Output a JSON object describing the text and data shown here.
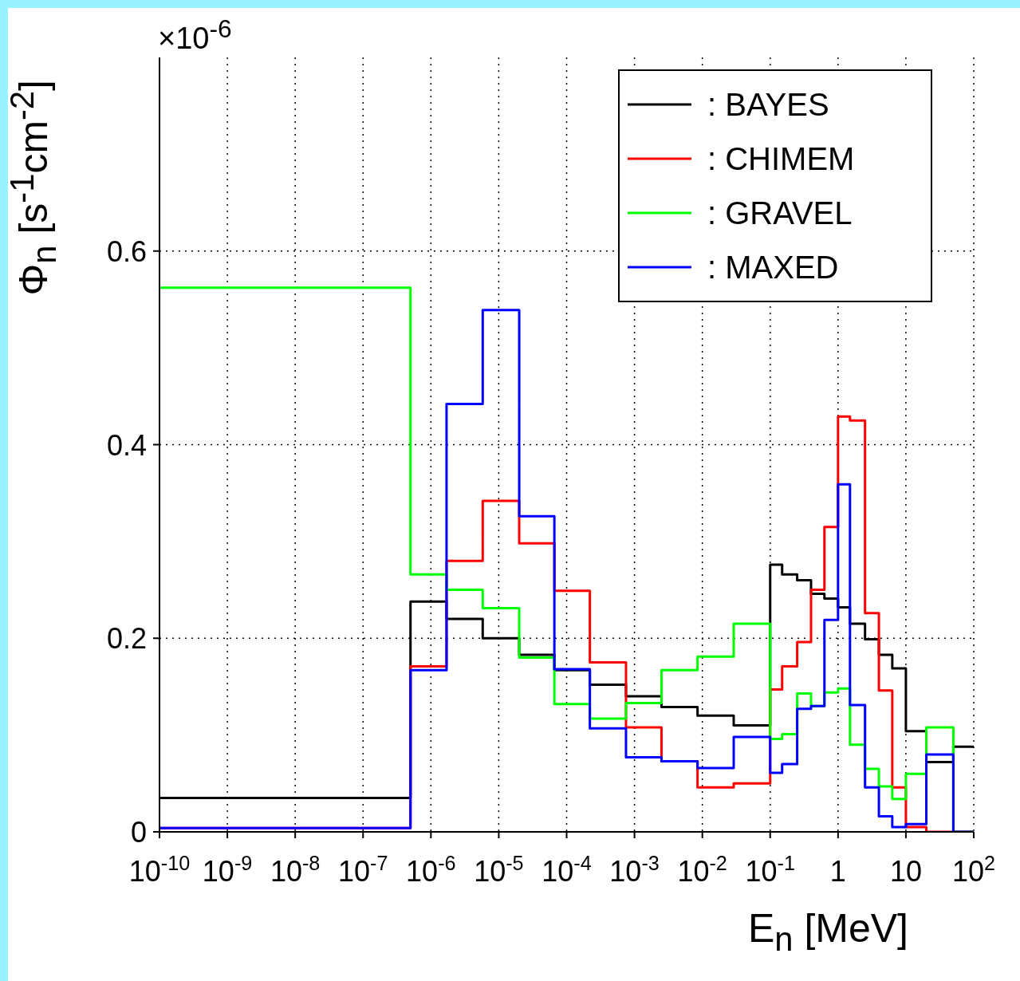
{
  "chart_data": {
    "type": "histogram",
    "bins": [
      1e-10,
      5e-07,
      1.7e-06,
      5.8e-06,
      2e-05,
      6.6e-05,
      0.00022,
      0.00075,
      0.0025,
      0.0085,
      0.029,
      0.1,
      0.15,
      0.25,
      0.4,
      0.63,
      1,
      1.5,
      2.5,
      4,
      6.3,
      10,
      20,
      50,
      100
    ],
    "series": [
      {
        "name": ": BAYES",
        "color": "#000000",
        "values": [
          0.035,
          0.238,
          0.22,
          0.2,
          0.183,
          0.167,
          0.152,
          0.14,
          0.129,
          0.12,
          0.11,
          0.276,
          0.266,
          0.26,
          0.246,
          0.241,
          0.232,
          0.215,
          0.199,
          0.183,
          0.169,
          0.104,
          0.072,
          0.088
        ]
      },
      {
        "name": ": CHIMEM",
        "color": "#ff0000",
        "values": [
          0.004,
          0.171,
          0.28,
          0.342,
          0.298,
          0.249,
          0.175,
          0.108,
          0.073,
          0.046,
          0.05,
          0.147,
          0.171,
          0.196,
          0.25,
          0.315,
          0.429,
          0.425,
          0.226,
          0.146,
          0.046,
          0.005,
          0.0,
          0.0
        ]
      },
      {
        "name": ": GRAVEL",
        "color": "#00ff00",
        "values": [
          0.562,
          0.266,
          0.25,
          0.231,
          0.18,
          0.132,
          0.117,
          0.133,
          0.167,
          0.181,
          0.215,
          0.096,
          0.101,
          0.143,
          0.13,
          0.144,
          0.148,
          0.09,
          0.065,
          0.047,
          0.034,
          0.06,
          0.108,
          0.0
        ]
      },
      {
        "name": ": MAXED",
        "color": "#0000ff",
        "values": [
          0.004,
          0.167,
          0.442,
          0.539,
          0.326,
          0.168,
          0.107,
          0.077,
          0.073,
          0.066,
          0.098,
          0.061,
          0.07,
          0.127,
          0.13,
          0.219,
          0.359,
          0.131,
          0.046,
          0.016,
          0.005,
          0.008,
          0.08,
          0.0
        ]
      }
    ],
    "xlim": [
      1e-10,
      100
    ],
    "xticks": [
      {
        "value": 1e-10,
        "label": "10$^{-10}$"
      },
      {
        "value": 1e-09,
        "label": "10$^{-9}$"
      },
      {
        "value": 1e-08,
        "label": "10$^{-8}$"
      },
      {
        "value": 1e-07,
        "label": "10$^{-7}$"
      },
      {
        "value": 1e-06,
        "label": "10$^{-6}$"
      },
      {
        "value": 1e-05,
        "label": "10$^{-5}$"
      },
      {
        "value": 0.0001,
        "label": "10$^{-4}$"
      },
      {
        "value": 0.001,
        "label": "10$^{-3}$"
      },
      {
        "value": 0.01,
        "label": "10$^{-2}$"
      },
      {
        "value": 0.1,
        "label": "10$^{-1}$"
      },
      1,
      10,
      {
        "value": 100,
        "label": "10$^{2}$"
      }
    ],
    "ylim": [
      0,
      0.8
    ],
    "yticks": [
      0,
      0.2,
      0.4,
      0.6
    ],
    "log": "x",
    "grid": true,
    "legend": "top right",
    "xlabel": "E$_{n}$ [MeV]",
    "ylabel": "Φ$_{n}$ [s$^{-1}$cm$^{-2}$]",
    "annotations": [
      "×10$^{-6}$"
    ]
  }
}
